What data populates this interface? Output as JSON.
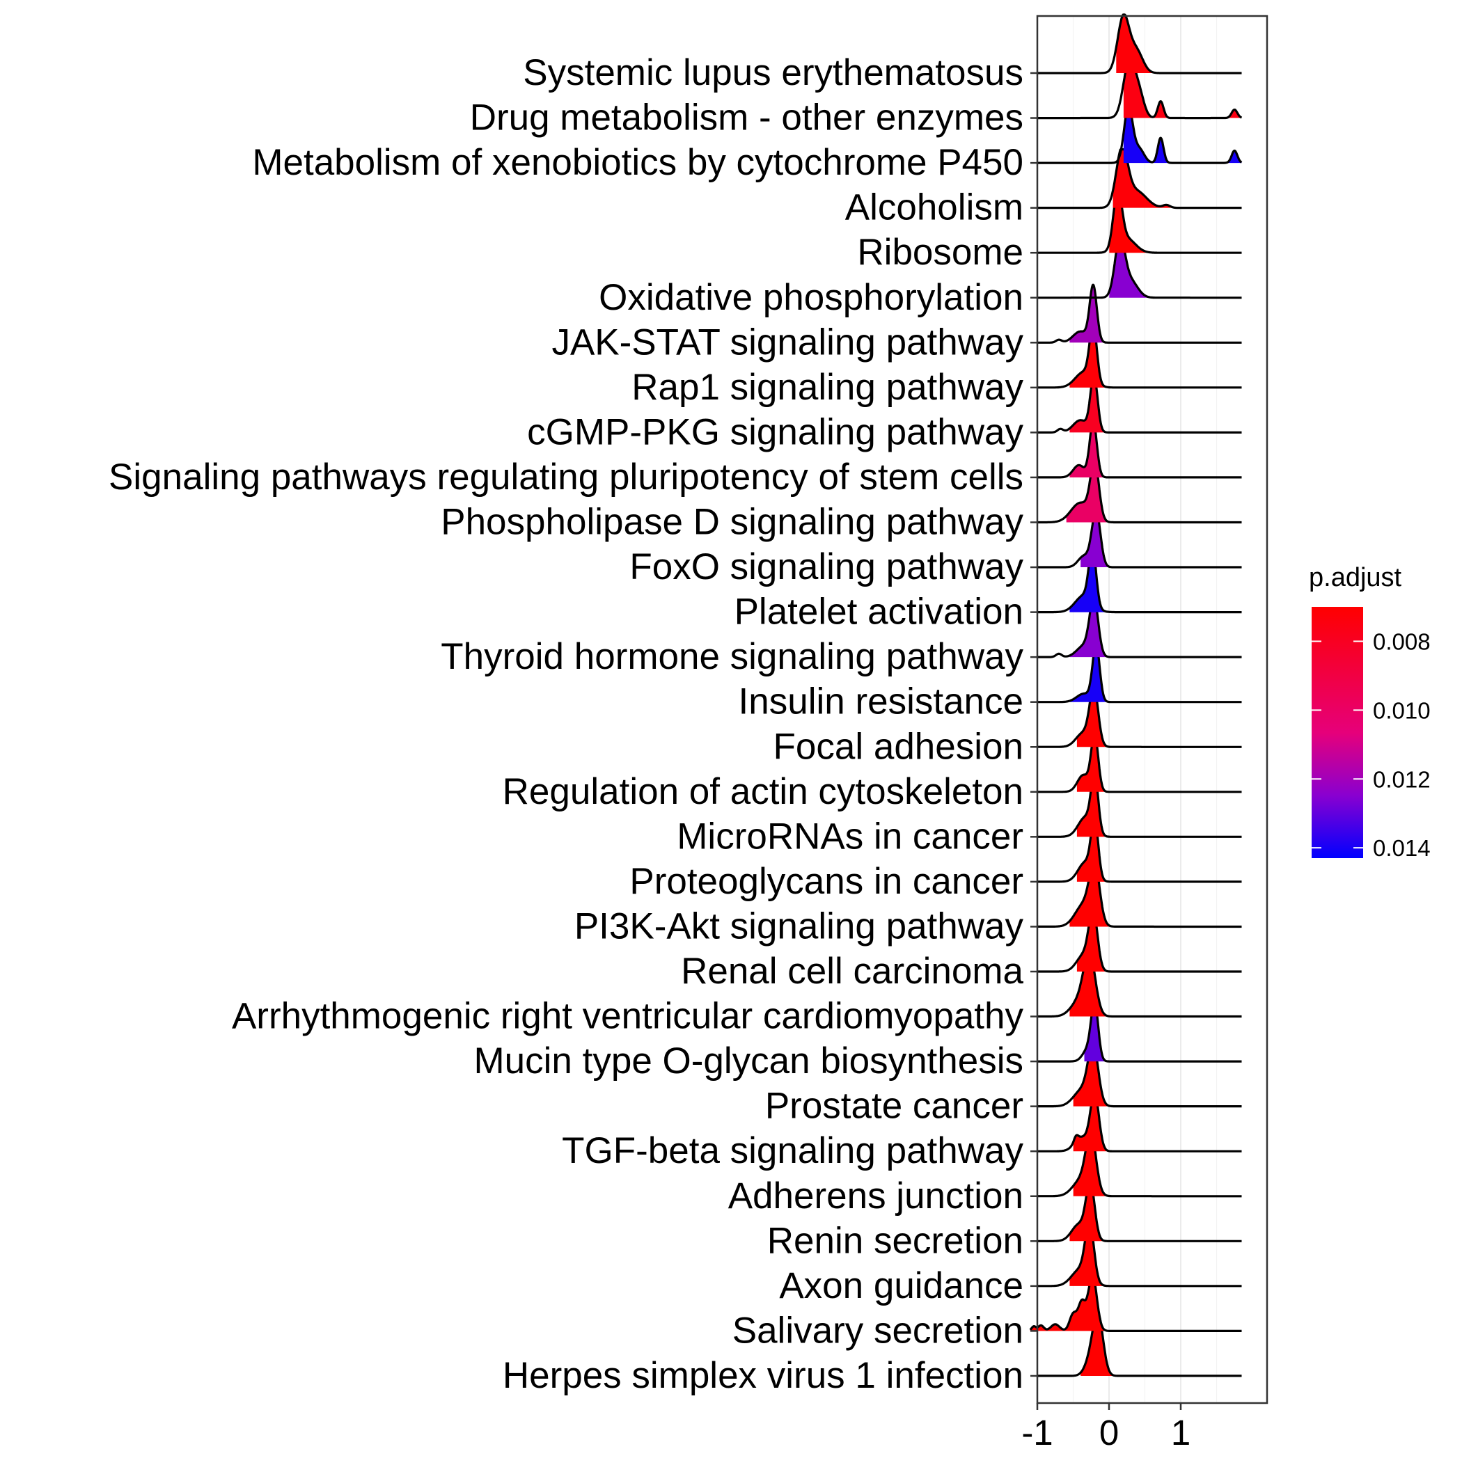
{
  "chart_data": {
    "type": "ridgeline",
    "title": "",
    "xlabel": "",
    "ylabel": "",
    "xlim": [
      -1.1,
      1.95
    ],
    "x_ticks": [
      -1,
      0,
      1
    ],
    "x_tick_labels": [
      "-1",
      "0",
      "1"
    ],
    "grid": true,
    "legend": {
      "title": "p.adjust",
      "placement": "right",
      "type": "colorbar",
      "range": [
        0.007,
        0.0143
      ],
      "low_value_color": "#FF0000",
      "high_value_color": "#0000FF",
      "ticks": [
        0.008,
        0.01,
        0.012,
        0.014
      ],
      "tick_labels": [
        "0.008",
        "0.010",
        "0.012",
        "0.014"
      ]
    },
    "categories": [
      "Systemic lupus erythematosus",
      "Drug metabolism - other enzymes",
      "Metabolism of xenobiotics by cytochrome P450",
      "Alcoholism",
      "Ribosome",
      "Oxidative phosphorylation",
      "JAK-STAT signaling pathway",
      "Rap1 signaling pathway",
      "cGMP-PKG signaling pathway",
      "Signaling pathways regulating pluripotency of stem cells",
      "Phospholipase D signaling pathway",
      "FoxO signaling pathway",
      "Platelet activation",
      "Thyroid hormone signaling pathway",
      "Insulin resistance",
      "Focal adhesion",
      "Regulation of actin cytoskeleton",
      "MicroRNAs in cancer",
      "Proteoglycans in cancer",
      "PI3K-Akt signaling pathway",
      "Renal cell carcinoma",
      "Arrhythmogenic right ventricular cardiomyopathy",
      "Mucin type O-glycan biosynthesis",
      "Prostate cancer",
      "TGF-beta signaling pathway",
      "Adherens junction",
      "Renin secretion",
      "Axon guidance",
      "Salivary secretion",
      "Herpes simplex virus 1 infection"
    ],
    "series": [
      {
        "p_adjust": 0.0072,
        "range": [
          -1.0,
          1.85
        ],
        "fill_range": [
          0.1,
          0.6
        ],
        "peaks": [
          [
            0.2,
            0.08,
            1.0
          ],
          [
            0.38,
            0.09,
            0.4
          ]
        ]
      },
      {
        "p_adjust": 0.0075,
        "range": [
          -1.0,
          1.85
        ],
        "fill_range": [
          0.2,
          1.85
        ],
        "peaks": [
          [
            0.28,
            0.08,
            1.0
          ],
          [
            0.42,
            0.07,
            0.4
          ],
          [
            0.72,
            0.04,
            0.3
          ],
          [
            1.75,
            0.04,
            0.15
          ]
        ]
      },
      {
        "p_adjust": 0.014,
        "range": [
          -1.0,
          1.85
        ],
        "fill_range": [
          0.2,
          1.85
        ],
        "peaks": [
          [
            0.27,
            0.06,
            1.0
          ],
          [
            0.42,
            0.07,
            0.25
          ],
          [
            0.72,
            0.04,
            0.45
          ],
          [
            1.75,
            0.04,
            0.22
          ]
        ]
      },
      {
        "p_adjust": 0.0072,
        "range": [
          -1.0,
          1.85
        ],
        "fill_range": [
          0.05,
          1.0
        ],
        "peaks": [
          [
            0.18,
            0.08,
            1.0
          ],
          [
            0.38,
            0.14,
            0.3
          ],
          [
            0.8,
            0.05,
            0.05
          ]
        ]
      },
      {
        "p_adjust": 0.007,
        "range": [
          -1.0,
          1.85
        ],
        "fill_range": [
          0.0,
          0.55
        ],
        "peaks": [
          [
            0.12,
            0.06,
            1.0
          ],
          [
            0.25,
            0.12,
            0.25
          ]
        ]
      },
      {
        "p_adjust": 0.0125,
        "range": [
          -1.0,
          1.85
        ],
        "fill_range": [
          0.0,
          0.55
        ],
        "peaks": [
          [
            0.15,
            0.07,
            1.0
          ],
          [
            0.3,
            0.1,
            0.3
          ]
        ]
      },
      {
        "p_adjust": 0.012,
        "range": [
          -1.0,
          1.85
        ],
        "fill_range": [
          -0.55,
          0.0
        ],
        "peaks": [
          [
            -0.22,
            0.05,
            1.0
          ],
          [
            -0.4,
            0.1,
            0.2
          ],
          [
            -0.7,
            0.04,
            0.05
          ]
        ]
      },
      {
        "p_adjust": 0.0072,
        "range": [
          -1.0,
          1.85
        ],
        "fill_range": [
          -0.55,
          0.0
        ],
        "peaks": [
          [
            -0.22,
            0.05,
            1.0
          ],
          [
            -0.35,
            0.12,
            0.28
          ]
        ]
      },
      {
        "p_adjust": 0.008,
        "range": [
          -1.0,
          1.85
        ],
        "fill_range": [
          -0.55,
          0.0
        ],
        "peaks": [
          [
            -0.21,
            0.05,
            1.0
          ],
          [
            -0.4,
            0.1,
            0.22
          ],
          [
            -0.68,
            0.04,
            0.06
          ]
        ]
      },
      {
        "p_adjust": 0.01,
        "range": [
          -1.0,
          1.85
        ],
        "fill_range": [
          -0.55,
          0.0
        ],
        "peaks": [
          [
            -0.22,
            0.05,
            1.0
          ],
          [
            -0.42,
            0.08,
            0.22
          ]
        ]
      },
      {
        "p_adjust": 0.01,
        "range": [
          -1.0,
          1.85
        ],
        "fill_range": [
          -0.6,
          0.0
        ],
        "peaks": [
          [
            -0.2,
            0.06,
            1.0
          ],
          [
            -0.4,
            0.13,
            0.35
          ]
        ]
      },
      {
        "p_adjust": 0.0125,
        "range": [
          -1.0,
          1.85
        ],
        "fill_range": [
          -0.4,
          0.0
        ],
        "peaks": [
          [
            -0.18,
            0.06,
            1.0
          ],
          [
            -0.35,
            0.08,
            0.2
          ]
        ]
      },
      {
        "p_adjust": 0.014,
        "range": [
          -1.0,
          1.85
        ],
        "fill_range": [
          -0.55,
          0.0
        ],
        "peaks": [
          [
            -0.23,
            0.05,
            1.0
          ],
          [
            -0.35,
            0.12,
            0.3
          ]
        ]
      },
      {
        "p_adjust": 0.0125,
        "range": [
          -1.0,
          1.85
        ],
        "fill_range": [
          -0.55,
          0.0
        ],
        "peaks": [
          [
            -0.21,
            0.06,
            1.0
          ],
          [
            -0.35,
            0.1,
            0.2
          ],
          [
            -0.7,
            0.04,
            0.06
          ]
        ]
      },
      {
        "p_adjust": 0.014,
        "range": [
          -1.0,
          1.85
        ],
        "fill_range": [
          -0.55,
          0.0
        ],
        "peaks": [
          [
            -0.18,
            0.05,
            1.0
          ],
          [
            -0.35,
            0.1,
            0.15
          ]
        ]
      },
      {
        "p_adjust": 0.007,
        "range": [
          -1.0,
          1.85
        ],
        "fill_range": [
          -0.45,
          0.0
        ],
        "peaks": [
          [
            -0.21,
            0.06,
            1.0
          ],
          [
            -0.36,
            0.1,
            0.25
          ]
        ]
      },
      {
        "p_adjust": 0.007,
        "range": [
          -1.0,
          1.85
        ],
        "fill_range": [
          -0.45,
          0.0
        ],
        "peaks": [
          [
            -0.2,
            0.05,
            1.0
          ],
          [
            -0.36,
            0.08,
            0.3
          ]
        ]
      },
      {
        "p_adjust": 0.007,
        "range": [
          -1.0,
          1.85
        ],
        "fill_range": [
          -0.45,
          0.0
        ],
        "peaks": [
          [
            -0.2,
            0.05,
            1.0
          ],
          [
            -0.33,
            0.1,
            0.35
          ]
        ]
      },
      {
        "p_adjust": 0.007,
        "range": [
          -1.0,
          1.85
        ],
        "fill_range": [
          -0.45,
          0.0
        ],
        "peaks": [
          [
            -0.2,
            0.05,
            1.0
          ],
          [
            -0.33,
            0.1,
            0.35
          ]
        ]
      },
      {
        "p_adjust": 0.007,
        "range": [
          -1.0,
          1.85
        ],
        "fill_range": [
          -0.55,
          0.0
        ],
        "peaks": [
          [
            -0.2,
            0.07,
            1.0
          ],
          [
            -0.35,
            0.12,
            0.4
          ]
        ]
      },
      {
        "p_adjust": 0.007,
        "range": [
          -1.0,
          1.85
        ],
        "fill_range": [
          -0.45,
          0.0
        ],
        "peaks": [
          [
            -0.22,
            0.06,
            1.0
          ],
          [
            -0.35,
            0.1,
            0.3
          ]
        ]
      },
      {
        "p_adjust": 0.007,
        "range": [
          -1.0,
          1.85
        ],
        "fill_range": [
          -0.55,
          0.0
        ],
        "peaks": [
          [
            -0.27,
            0.08,
            1.0
          ],
          [
            -0.4,
            0.12,
            0.3
          ]
        ]
      },
      {
        "p_adjust": 0.013,
        "range": [
          -1.0,
          1.85
        ],
        "fill_range": [
          -0.35,
          0.0
        ],
        "peaks": [
          [
            -0.2,
            0.05,
            1.0
          ],
          [
            -0.3,
            0.07,
            0.2
          ]
        ]
      },
      {
        "p_adjust": 0.007,
        "range": [
          -1.0,
          1.85
        ],
        "fill_range": [
          -0.5,
          0.0
        ],
        "peaks": [
          [
            -0.22,
            0.07,
            1.0
          ],
          [
            -0.37,
            0.12,
            0.3
          ]
        ]
      },
      {
        "p_adjust": 0.007,
        "range": [
          -1.0,
          1.85
        ],
        "fill_range": [
          -0.5,
          0.0
        ],
        "peaks": [
          [
            -0.2,
            0.06,
            1.0
          ],
          [
            -0.38,
            0.1,
            0.25
          ],
          [
            -0.46,
            0.03,
            0.1
          ]
        ]
      },
      {
        "p_adjust": 0.007,
        "range": [
          -1.0,
          1.85
        ],
        "fill_range": [
          -0.5,
          0.0
        ],
        "peaks": [
          [
            -0.25,
            0.07,
            1.0
          ],
          [
            -0.38,
            0.12,
            0.3
          ]
        ]
      },
      {
        "p_adjust": 0.007,
        "range": [
          -1.0,
          1.85
        ],
        "fill_range": [
          -0.55,
          0.0
        ],
        "peaks": [
          [
            -0.26,
            0.06,
            1.0
          ],
          [
            -0.42,
            0.1,
            0.3
          ]
        ]
      },
      {
        "p_adjust": 0.007,
        "range": [
          -1.0,
          1.85
        ],
        "fill_range": [
          -0.55,
          0.0
        ],
        "peaks": [
          [
            -0.27,
            0.06,
            1.0
          ],
          [
            -0.4,
            0.12,
            0.3
          ]
        ]
      },
      {
        "p_adjust": 0.007,
        "range": [
          -1.1,
          1.85
        ],
        "fill_range": [
          -1.1,
          0.0
        ],
        "peaks": [
          [
            -0.23,
            0.06,
            1.0
          ],
          [
            -0.38,
            0.05,
            0.5
          ],
          [
            -0.5,
            0.05,
            0.3
          ],
          [
            -0.75,
            0.06,
            0.12
          ],
          [
            -0.95,
            0.04,
            0.1
          ],
          [
            -1.05,
            0.03,
            0.08
          ]
        ]
      },
      {
        "p_adjust": 0.007,
        "range": [
          -1.0,
          1.85
        ],
        "fill_range": [
          -0.4,
          0.05
        ],
        "peaks": [
          [
            -0.15,
            0.07,
            1.0
          ],
          [
            -0.25,
            0.08,
            0.3
          ]
        ]
      }
    ]
  }
}
